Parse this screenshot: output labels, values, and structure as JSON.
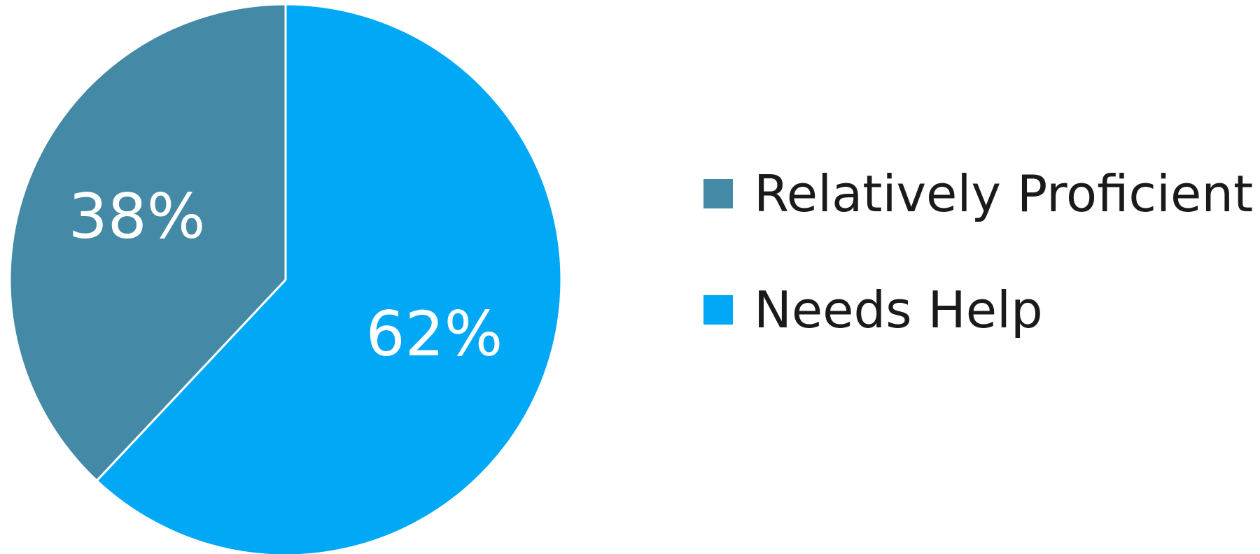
{
  "chart_data": {
    "type": "pie",
    "slices": [
      {
        "label": "Relatively Proficient",
        "value": 38,
        "display": "38%",
        "color": "#4489a6"
      },
      {
        "label": "Needs Help",
        "value": 62,
        "display": "62%",
        "color": "#00a8f6"
      }
    ],
    "start_angle_deg": 0,
    "direction": "counterclockwise-from-top",
    "legend_position": "right",
    "label_color": "#ffffff"
  },
  "legend": {
    "items": [
      {
        "label": "Relatively Proficient",
        "color": "#4489a6"
      },
      {
        "label": "Needs Help",
        "color": "#00a8f6"
      }
    ]
  }
}
